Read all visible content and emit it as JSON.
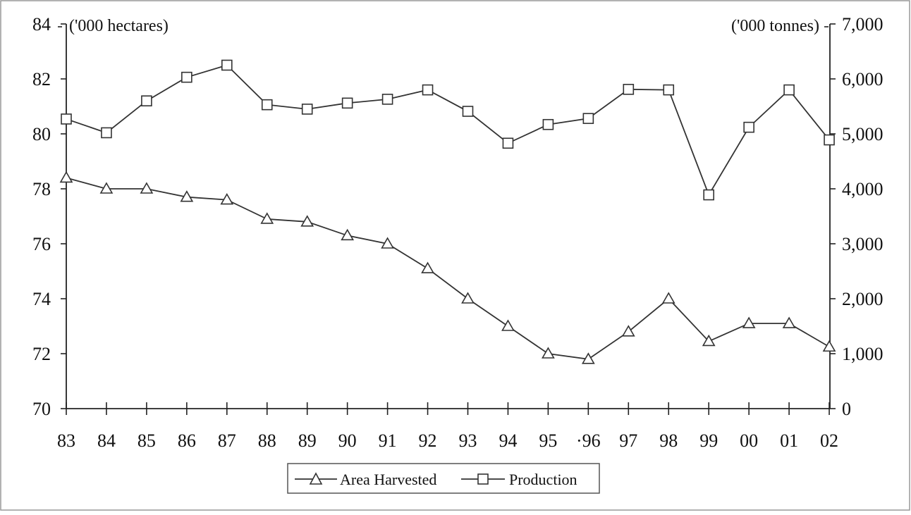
{
  "chart_data": {
    "type": "line",
    "title": "",
    "categories": [
      "83",
      "84",
      "85",
      "86",
      "87",
      "88",
      "89",
      "90",
      "91",
      "92",
      "93",
      "94",
      "95",
      "·96",
      "97",
      "98",
      "99",
      "00",
      "01",
      "02"
    ],
    "y_left": {
      "unit": "('000 hectares)",
      "ylim": [
        70,
        84
      ],
      "ticks": [
        "70",
        "72",
        "74",
        "76",
        "78",
        "80",
        "82",
        "84"
      ]
    },
    "y_right": {
      "unit": "('000 tonnes)",
      "ylim": [
        0,
        7000
      ],
      "ticks": [
        "0",
        "1,000",
        "2,000",
        "3,000",
        "4,000",
        "5,000",
        "6,000",
        "7,000"
      ]
    },
    "series": [
      {
        "name": "Area Harvested",
        "axis": "left",
        "marker": "triangle",
        "values": [
          78.4,
          78.0,
          78.0,
          77.7,
          77.6,
          76.9,
          76.8,
          76.3,
          76.0,
          75.1,
          74.0,
          73.0,
          72.0,
          71.8,
          72.8,
          74.0,
          72.45,
          73.1,
          73.1,
          72.25
        ]
      },
      {
        "name": "Production",
        "axis": "right",
        "marker": "square",
        "values": [
          5270,
          5020,
          5600,
          6030,
          6250,
          5530,
          5450,
          5560,
          5630,
          5800,
          5410,
          4830,
          5170,
          5280,
          5810,
          5800,
          3890,
          5120,
          5800,
          4890
        ]
      }
    ],
    "grid": false,
    "legend_position": "bottom-center",
    "colors": {
      "line": "#333333",
      "axis": "#222222",
      "border": "#999999"
    }
  }
}
